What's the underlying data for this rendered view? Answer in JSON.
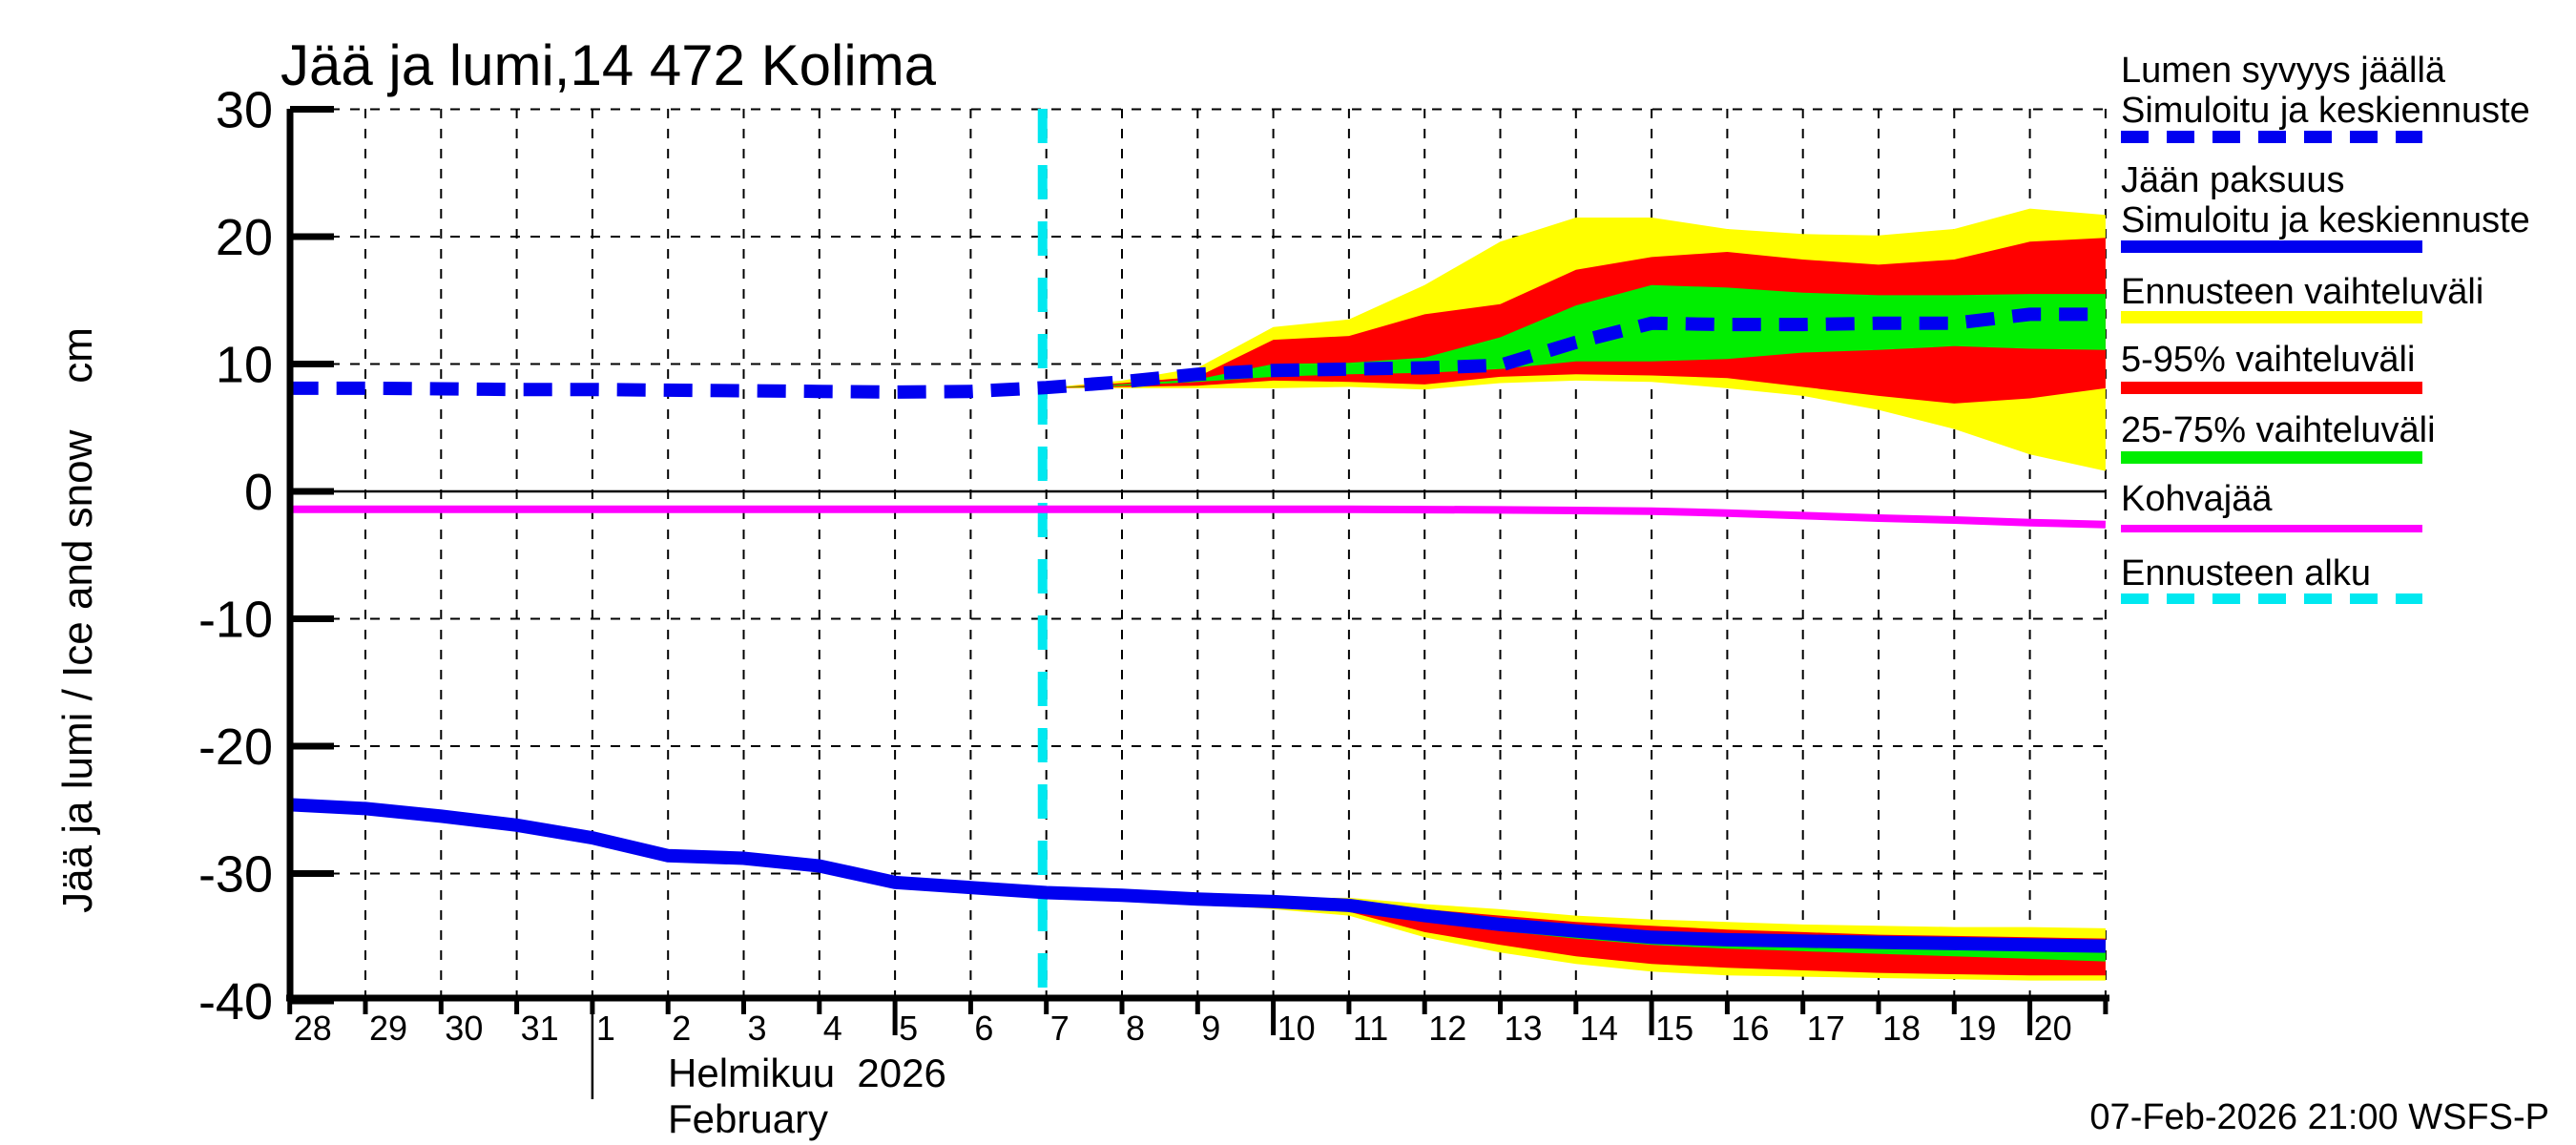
{
  "title": "Jää ja lumi,14 472 Kolima",
  "y_axis_title": "Jää ja lumi / Ice and snow    cm",
  "footer_stamp": "07-Feb-2026 21:00 WSFS-P",
  "month_label_fi": "Helmikuu  2026",
  "month_label_en": "February",
  "colors": {
    "median_blue": "#0000F0",
    "range_yellow": "#FFFF00",
    "range_red": "#FF0000",
    "range_green": "#00EE00",
    "kohvajaa_magenta": "#FF00FF",
    "forecast_cyan": "#00E8F0",
    "grid_black": "#000000"
  },
  "legend": [
    {
      "lines": [
        "Lumen syvyys jäällä",
        "Simuloitu ja keskiennuste"
      ],
      "swatch": {
        "style": "dashed",
        "color": "#0000F0"
      }
    },
    {
      "lines": [
        "Jään paksuus",
        "Simuloitu ja keskiennuste"
      ],
      "swatch": {
        "style": "solid",
        "color": "#0000F0"
      }
    },
    {
      "lines": [
        "Ennusteen vaihteluväli"
      ],
      "swatch": {
        "style": "solid",
        "color": "#FFFF00"
      }
    },
    {
      "lines": [
        "5-95% vaihteluväli"
      ],
      "swatch": {
        "style": "solid",
        "color": "#FF0000"
      }
    },
    {
      "lines": [
        "25-75% vaihteluväli"
      ],
      "swatch": {
        "style": "solid",
        "color": "#00EE00"
      }
    },
    {
      "lines": [
        "Kohvajää"
      ],
      "swatch": {
        "style": "solid",
        "color": "#FF00FF"
      }
    },
    {
      "lines": [
        "Ennusteen alku"
      ],
      "swatch": {
        "style": "dashed",
        "color": "#00E8F0"
      }
    }
  ],
  "chart_data": {
    "type": "line",
    "title": "Jää ja lumi,14 472 Kolima",
    "ylabel": "Jää ja lumi / Ice and snow (cm)",
    "xlabel": "Helmikuu 2026 / February (days 28-Jan-2026 … 21-Feb-2026)",
    "ylim": [
      -40,
      30
    ],
    "xlim_day_index": [
      0,
      24
    ],
    "grid": "dashed, every day vertical / every 10 cm horizontal, solid line at 0",
    "legend_position": "outside right",
    "y_ticks": [
      30,
      20,
      10,
      0,
      -10,
      -20,
      -30,
      -40
    ],
    "x_tick_labels": [
      "28",
      "29",
      "30",
      "31",
      "1",
      "2",
      "3",
      "4",
      "5",
      "6",
      "7",
      "8",
      "9",
      "10",
      "11",
      "12",
      "13",
      "14",
      "15",
      "16",
      "17",
      "18",
      "19",
      "20"
    ],
    "x_long_tick_indices": [
      8,
      13,
      18,
      23
    ],
    "month_separator_index": 4,
    "forecast_start_index": 9.95,
    "series": [
      {
        "id": "snow_depth_median",
        "name": "Lumen syvyys jäällä — Simuloitu ja keskiennuste",
        "type": "line",
        "style": "dashed",
        "color": "#0000F0",
        "x": [
          0,
          1,
          2,
          3,
          4,
          5,
          6,
          7,
          8,
          9,
          10,
          11,
          12,
          13,
          14,
          15,
          16,
          17,
          18,
          19,
          20,
          21,
          22,
          23,
          24
        ],
        "y": [
          8.1,
          8.1,
          8.05,
          8.0,
          8.0,
          7.95,
          7.9,
          7.85,
          7.8,
          7.85,
          8.15,
          8.6,
          9.2,
          9.5,
          9.6,
          9.7,
          9.9,
          11.7,
          13.2,
          13.1,
          13.1,
          13.2,
          13.2,
          13.9,
          13.9
        ]
      },
      {
        "id": "snow_full_range",
        "name": "Ennusteen vaihteluväli (lumi)",
        "type": "band",
        "color": "#FFFF00",
        "x": [
          9.95,
          11,
          12,
          13,
          14,
          15,
          16,
          17,
          18,
          19,
          20,
          21,
          22,
          23,
          24
        ],
        "y_top": [
          8.1,
          8.7,
          9.7,
          12.9,
          13.5,
          16.2,
          19.6,
          21.5,
          21.5,
          20.6,
          20.2,
          20.1,
          20.6,
          22.2,
          21.7
        ],
        "y_bottom": [
          8.1,
          8.1,
          8.1,
          8.1,
          8.2,
          8.0,
          8.5,
          8.7,
          8.6,
          8.1,
          7.5,
          6.4,
          4.9,
          2.9,
          1.6
        ]
      },
      {
        "id": "snow_5_95",
        "name": "5-95% vaihteluväli (lumi)",
        "type": "band",
        "color": "#FF0000",
        "x": [
          9.95,
          11,
          12,
          13,
          14,
          15,
          16,
          17,
          18,
          19,
          20,
          21,
          22,
          23,
          24
        ],
        "y_top": [
          8.1,
          8.5,
          9.0,
          11.9,
          12.2,
          13.9,
          14.7,
          17.4,
          18.4,
          18.8,
          18.2,
          17.8,
          18.2,
          19.6,
          19.9
        ],
        "y_bottom": [
          8.1,
          8.2,
          8.3,
          8.7,
          8.6,
          8.4,
          9.0,
          9.2,
          9.1,
          8.9,
          8.2,
          7.5,
          6.9,
          7.3,
          8.1
        ]
      },
      {
        "id": "snow_25_75",
        "name": "25-75% vaihteluväli (lumi)",
        "type": "band",
        "color": "#00EE00",
        "x": [
          9.95,
          11,
          12,
          13,
          14,
          15,
          16,
          17,
          18,
          19,
          20,
          21,
          22,
          23,
          24
        ],
        "y_top": [
          8.1,
          8.4,
          8.8,
          10.0,
          10.1,
          10.5,
          12.1,
          14.6,
          16.2,
          16.0,
          15.6,
          15.4,
          15.4,
          15.5,
          15.5
        ],
        "y_bottom": [
          8.1,
          8.3,
          8.6,
          9.0,
          9.2,
          9.3,
          9.6,
          10.2,
          10.2,
          10.4,
          10.9,
          11.1,
          11.4,
          11.2,
          11.1
        ]
      },
      {
        "id": "ice_thickness_median",
        "name": "Jään paksuus — Simuloitu ja keskiennuste",
        "type": "line",
        "style": "solid",
        "color": "#0000F0",
        "x": [
          0,
          1,
          2,
          3,
          4,
          5,
          6,
          7,
          8,
          9,
          10,
          11,
          12,
          13,
          14,
          15,
          16,
          17,
          18,
          19,
          20,
          21,
          22,
          23,
          24
        ],
        "y": [
          -24.6,
          -24.9,
          -25.5,
          -26.2,
          -27.2,
          -28.6,
          -28.8,
          -29.4,
          -30.7,
          -31.1,
          -31.5,
          -31.7,
          -32.0,
          -32.2,
          -32.5,
          -33.3,
          -34.0,
          -34.5,
          -35.0,
          -35.2,
          -35.3,
          -35.4,
          -35.5,
          -35.6,
          -35.7
        ]
      },
      {
        "id": "ice_full_range",
        "name": "Ennusteen vaihteluväli (jää)",
        "type": "band",
        "color": "#FFFF00",
        "x": [
          10,
          11,
          12,
          13,
          14,
          15,
          16,
          17,
          18,
          19,
          20,
          21,
          22,
          23,
          24
        ],
        "y_top": [
          -31.5,
          -31.6,
          -31.75,
          -31.9,
          -31.9,
          -32.4,
          -32.8,
          -33.3,
          -33.6,
          -33.8,
          -34.0,
          -34.1,
          -34.2,
          -34.2,
          -34.3
        ],
        "y_bottom": [
          -31.5,
          -32.0,
          -32.4,
          -32.8,
          -33.3,
          -35.0,
          -36.2,
          -37.1,
          -37.7,
          -38.0,
          -38.1,
          -38.2,
          -38.3,
          -38.4,
          -38.4
        ]
      },
      {
        "id": "ice_5_95",
        "name": "5-95% vaihteluväli (jää)",
        "type": "band",
        "color": "#FF0000",
        "x": [
          10,
          11,
          12,
          13,
          14,
          15,
          16,
          17,
          18,
          19,
          20,
          21,
          22,
          23,
          24
        ],
        "y_top": [
          -31.5,
          -31.65,
          -31.8,
          -32.0,
          -32.1,
          -32.8,
          -33.3,
          -33.8,
          -34.1,
          -34.4,
          -34.6,
          -34.8,
          -34.9,
          -35.0,
          -35.1
        ],
        "y_bottom": [
          -31.5,
          -31.9,
          -32.2,
          -32.6,
          -33.0,
          -34.6,
          -35.6,
          -36.5,
          -37.1,
          -37.4,
          -37.6,
          -37.8,
          -37.9,
          -38.0,
          -38.0
        ]
      },
      {
        "id": "ice_25_75",
        "name": "25-75% vaihteluväli (jää)",
        "type": "band",
        "color": "#00EE00",
        "x": [
          10,
          11,
          12,
          13,
          14,
          15,
          16,
          17,
          18,
          19,
          20,
          21,
          22,
          23,
          24
        ],
        "y_top": [
          -31.5,
          -31.7,
          -32.0,
          -32.2,
          -32.4,
          -33.2,
          -33.8,
          -34.3,
          -34.8,
          -35.0,
          -35.1,
          -35.2,
          -35.3,
          -35.4,
          -35.5
        ],
        "y_bottom": [
          -31.5,
          -31.8,
          -32.1,
          -32.4,
          -32.9,
          -33.8,
          -34.5,
          -35.1,
          -35.6,
          -35.9,
          -36.1,
          -36.3,
          -36.5,
          -36.7,
          -36.9
        ]
      },
      {
        "id": "kohvajaa",
        "name": "Kohvajää",
        "type": "line",
        "style": "solid",
        "color": "#FF00FF",
        "x": [
          0,
          2,
          4,
          6,
          8,
          10,
          12,
          14,
          16,
          17,
          18,
          19,
          20,
          21,
          22,
          23,
          24
        ],
        "y": [
          -1.4,
          -1.4,
          -1.4,
          -1.4,
          -1.4,
          -1.4,
          -1.4,
          -1.4,
          -1.45,
          -1.5,
          -1.55,
          -1.7,
          -1.9,
          -2.1,
          -2.25,
          -2.45,
          -2.6
        ]
      },
      {
        "id": "forecast_start",
        "name": "Ennusteen alku",
        "type": "vline",
        "style": "dashed",
        "color": "#00E8F0",
        "x": 9.95
      }
    ]
  }
}
